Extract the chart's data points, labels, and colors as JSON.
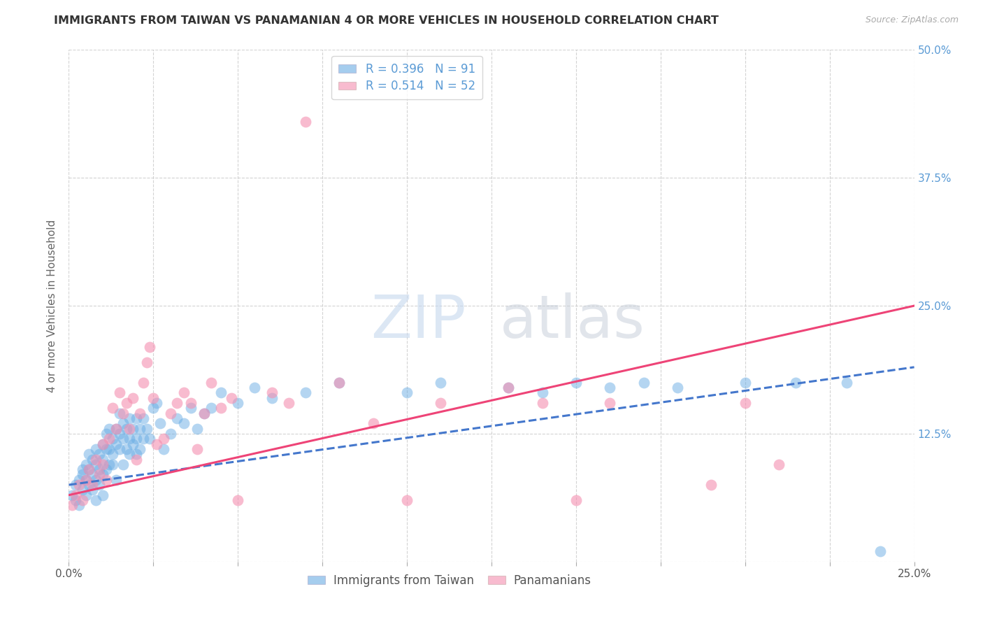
{
  "title": "IMMIGRANTS FROM TAIWAN VS PANAMANIAN 4 OR MORE VEHICLES IN HOUSEHOLD CORRELATION CHART",
  "source": "Source: ZipAtlas.com",
  "ylabel": "4 or more Vehicles in Household",
  "xlim": [
    0.0,
    0.25
  ],
  "ylim": [
    0.0,
    0.5
  ],
  "xticks": [
    0.0,
    0.025,
    0.05,
    0.075,
    0.1,
    0.125,
    0.15,
    0.175,
    0.2,
    0.225,
    0.25
  ],
  "xticklabels_show": [
    "0.0%",
    "",
    "",
    "",
    "",
    "",
    "",
    "",
    "",
    "",
    "25.0%"
  ],
  "yticks": [
    0.0,
    0.125,
    0.25,
    0.375,
    0.5
  ],
  "yticklabels_right": [
    "",
    "12.5%",
    "25.0%",
    "37.5%",
    "50.0%"
  ],
  "legend_label1": "Immigrants from Taiwan",
  "legend_label2": "Panamanians",
  "blue_color": "#6aade4",
  "pink_color": "#f48fb0",
  "blue_line_color": "#4477cc",
  "pink_line_color": "#ee4477",
  "watermark_zip": "ZIP",
  "watermark_atlas": "atlas",
  "blue_scatter_x": [
    0.001,
    0.002,
    0.002,
    0.003,
    0.003,
    0.004,
    0.004,
    0.004,
    0.005,
    0.005,
    0.005,
    0.006,
    0.006,
    0.006,
    0.007,
    0.007,
    0.007,
    0.008,
    0.008,
    0.008,
    0.008,
    0.009,
    0.009,
    0.009,
    0.01,
    0.01,
    0.01,
    0.01,
    0.011,
    0.011,
    0.011,
    0.012,
    0.012,
    0.012,
    0.013,
    0.013,
    0.013,
    0.014,
    0.014,
    0.014,
    0.015,
    0.015,
    0.015,
    0.016,
    0.016,
    0.016,
    0.017,
    0.017,
    0.018,
    0.018,
    0.018,
    0.019,
    0.019,
    0.02,
    0.02,
    0.02,
    0.021,
    0.021,
    0.022,
    0.022,
    0.023,
    0.024,
    0.025,
    0.026,
    0.027,
    0.028,
    0.03,
    0.032,
    0.034,
    0.036,
    0.038,
    0.04,
    0.042,
    0.045,
    0.05,
    0.055,
    0.06,
    0.07,
    0.08,
    0.1,
    0.11,
    0.13,
    0.14,
    0.15,
    0.16,
    0.17,
    0.18,
    0.2,
    0.215,
    0.23,
    0.24
  ],
  "blue_scatter_y": [
    0.065,
    0.06,
    0.075,
    0.055,
    0.08,
    0.07,
    0.085,
    0.09,
    0.065,
    0.08,
    0.095,
    0.075,
    0.09,
    0.105,
    0.07,
    0.085,
    0.1,
    0.08,
    0.095,
    0.11,
    0.06,
    0.075,
    0.09,
    0.105,
    0.085,
    0.1,
    0.115,
    0.065,
    0.09,
    0.11,
    0.125,
    0.095,
    0.11,
    0.13,
    0.105,
    0.12,
    0.095,
    0.115,
    0.13,
    0.08,
    0.11,
    0.125,
    0.145,
    0.12,
    0.135,
    0.095,
    0.13,
    0.11,
    0.14,
    0.12,
    0.105,
    0.13,
    0.115,
    0.14,
    0.12,
    0.105,
    0.13,
    0.11,
    0.14,
    0.12,
    0.13,
    0.12,
    0.15,
    0.155,
    0.135,
    0.11,
    0.125,
    0.14,
    0.135,
    0.15,
    0.13,
    0.145,
    0.15,
    0.165,
    0.155,
    0.17,
    0.16,
    0.165,
    0.175,
    0.165,
    0.175,
    0.17,
    0.165,
    0.175,
    0.17,
    0.175,
    0.17,
    0.175,
    0.175,
    0.175,
    0.01
  ],
  "pink_scatter_x": [
    0.001,
    0.002,
    0.003,
    0.004,
    0.005,
    0.006,
    0.007,
    0.008,
    0.009,
    0.01,
    0.01,
    0.011,
    0.012,
    0.013,
    0.014,
    0.015,
    0.016,
    0.017,
    0.018,
    0.019,
    0.02,
    0.021,
    0.022,
    0.023,
    0.024,
    0.025,
    0.026,
    0.028,
    0.03,
    0.032,
    0.034,
    0.036,
    0.038,
    0.04,
    0.042,
    0.045,
    0.048,
    0.05,
    0.06,
    0.065,
    0.07,
    0.08,
    0.09,
    0.1,
    0.11,
    0.13,
    0.14,
    0.15,
    0.16,
    0.19,
    0.2,
    0.21
  ],
  "pink_scatter_y": [
    0.055,
    0.065,
    0.075,
    0.06,
    0.08,
    0.09,
    0.075,
    0.1,
    0.085,
    0.095,
    0.115,
    0.08,
    0.12,
    0.15,
    0.13,
    0.165,
    0.145,
    0.155,
    0.13,
    0.16,
    0.1,
    0.145,
    0.175,
    0.195,
    0.21,
    0.16,
    0.115,
    0.12,
    0.145,
    0.155,
    0.165,
    0.155,
    0.11,
    0.145,
    0.175,
    0.15,
    0.16,
    0.06,
    0.165,
    0.155,
    0.43,
    0.175,
    0.135,
    0.06,
    0.155,
    0.17,
    0.155,
    0.06,
    0.155,
    0.075,
    0.155,
    0.095
  ],
  "blue_trend_x": [
    0.0,
    0.25
  ],
  "blue_trend_y": [
    0.075,
    0.19
  ],
  "pink_trend_x": [
    0.0,
    0.25
  ],
  "pink_trend_y": [
    0.065,
    0.25
  ],
  "background_color": "#ffffff",
  "grid_color": "#c8c8c8",
  "title_color": "#333333",
  "axis_label_color": "#666666",
  "right_tick_color": "#5b9bd5",
  "title_fontsize": 11.5,
  "source_fontsize": 9,
  "ylabel_fontsize": 11,
  "legend_fontsize": 12,
  "tick_fontsize": 11
}
